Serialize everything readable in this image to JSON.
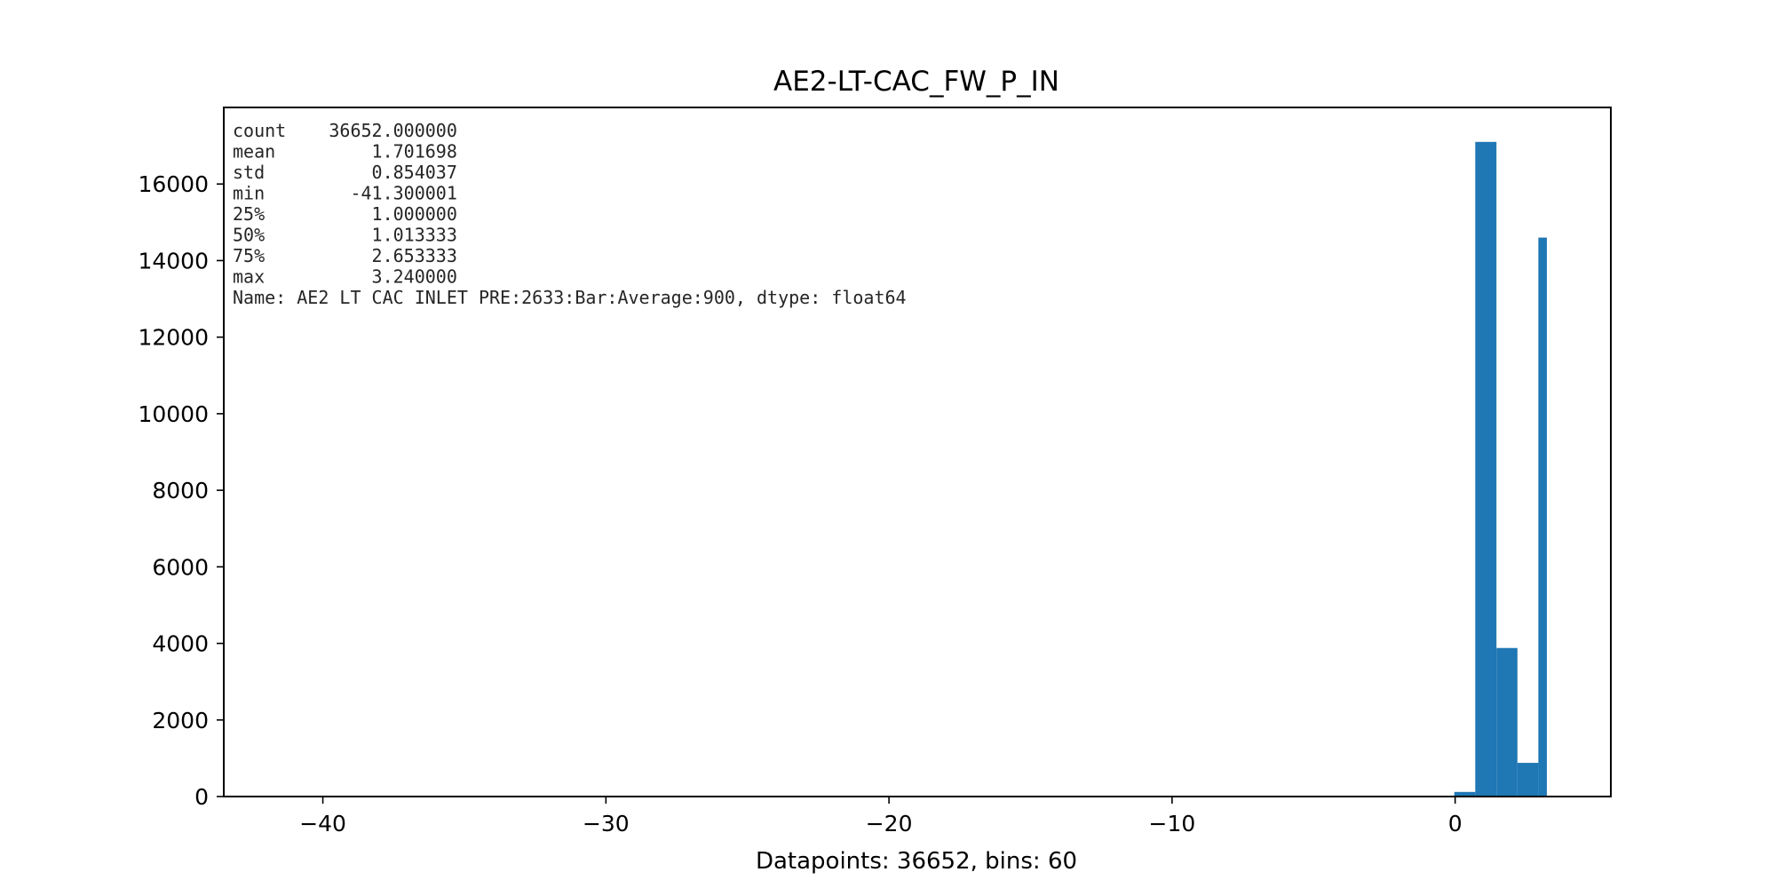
{
  "chart_data": {
    "type": "bar",
    "title": "AE2-LT-CAC_FW_P_IN",
    "xlabel": "Datapoints: 36652, bins: 60",
    "ylabel": "",
    "xlim": [
      -43.5,
      5.5
    ],
    "ylim": [
      0,
      18000
    ],
    "xticks": [
      -40,
      -30,
      -20,
      -10,
      0
    ],
    "xtick_labels": [
      "−40",
      "−30",
      "−20",
      "−10",
      "0"
    ],
    "yticks": [
      0,
      2000,
      4000,
      6000,
      8000,
      10000,
      12000,
      14000,
      16000
    ],
    "ytick_labels": [
      "0",
      "2000",
      "4000",
      "6000",
      "8000",
      "10000",
      "12000",
      "14000",
      "16000"
    ],
    "grid": false,
    "bar_color": "#1f77b4",
    "bins": [
      {
        "x0": -0.03,
        "x1": 0.71,
        "value": 120
      },
      {
        "x0": 0.71,
        "x1": 1.46,
        "value": 17100
      },
      {
        "x0": 1.46,
        "x1": 2.2,
        "value": 3880
      },
      {
        "x0": 2.2,
        "x1": 2.94,
        "value": 880
      },
      {
        "x0": 2.94,
        "x1": 3.24,
        "value": 14600
      }
    ],
    "annotation_lines": [
      "count    36652.000000",
      "mean         1.701698",
      "std          0.854037",
      "min        -41.300001",
      "25%          1.000000",
      "50%          1.013333",
      "75%          2.653333",
      "max          3.240000",
      "Name: AE2 LT CAC INLET PRE:2633:Bar:Average:900, dtype: float64"
    ]
  }
}
